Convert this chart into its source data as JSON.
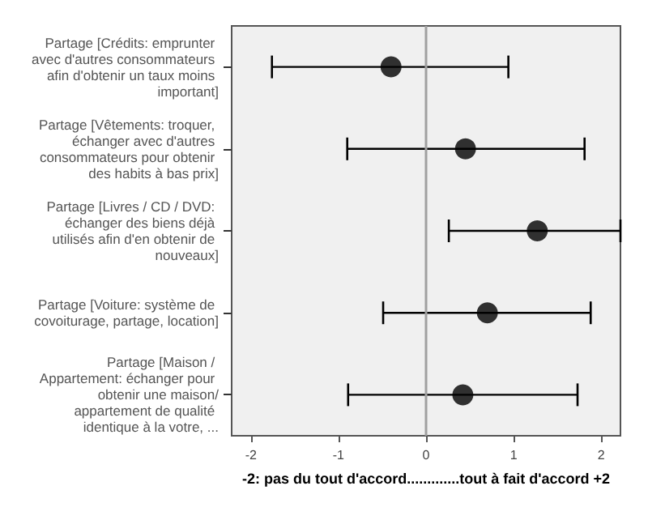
{
  "chart_data": {
    "type": "scatter",
    "orientation": "horizontal",
    "xlabel": "-2: pas du tout d'accord.............tout à fait d'accord +2",
    "categories": [
      "Partage [Crédits: emprunter avec d'autres consommateurs afin d'obtenir un taux moins important]",
      "Partage [Vêtements: troquer, échanger avec d'autres consommateurs pour obtenir des habits à bas prix]",
      "Partage [Livres / CD / DVD: échanger des biens déjà utilisés afin d'en obtenir de nouveaux]",
      "Partage [Voiture: système de covoiturage, partage, location]",
      "Partage [Maison / Appartement: échanger pour obtenir une maison/appartement de qualité identique à la votre, ..."
    ],
    "values": [
      -0.4,
      0.45,
      1.27,
      0.7,
      0.42
    ],
    "errors": [
      [
        -1.76,
        0.94
      ],
      [
        -0.9,
        1.81
      ],
      [
        0.26,
        2.22
      ],
      [
        -0.49,
        1.88
      ],
      [
        -0.89,
        1.73
      ]
    ],
    "color": "#000000",
    "marker": "circle",
    "xlim": [
      -2.22,
      2.22
    ],
    "xticks": [
      -2,
      -1,
      0,
      1,
      2
    ],
    "ref_lines": [
      {
        "axis": "x",
        "value": 0,
        "color": "#a0a0a0"
      }
    ]
  }
}
